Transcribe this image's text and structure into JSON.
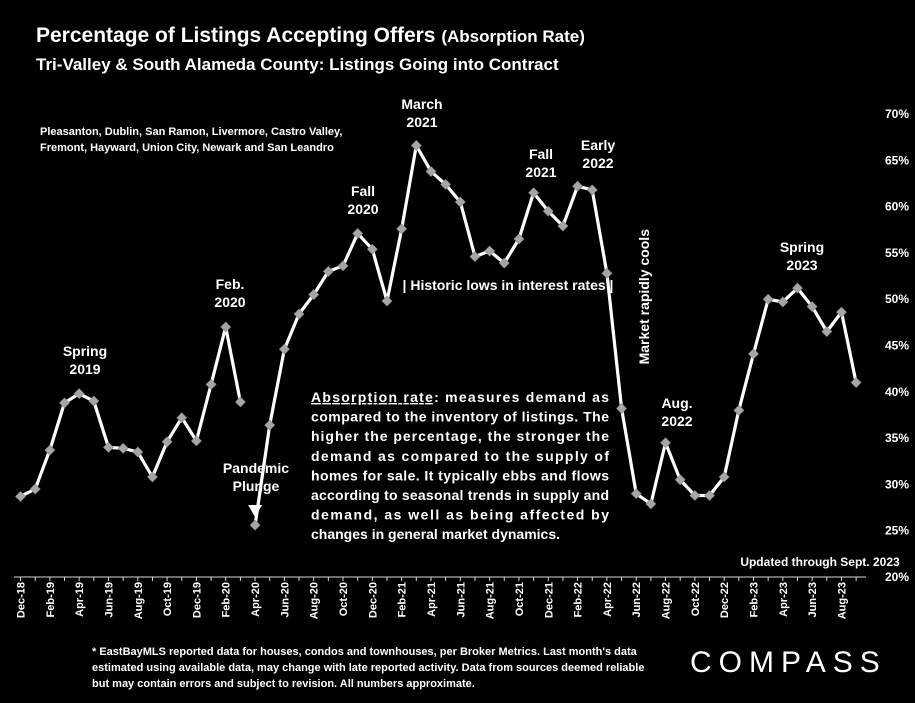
{
  "header": {
    "title": "Percentage of Listings Accepting Offers",
    "title_paren": "(Absorption Rate)",
    "subtitle": "Tri-Valley & South Alameda County: Listings Going into Contract"
  },
  "footer": {
    "footnote": "* EastBayMLS reported data for houses, condos and townhouses, per Broker Metrics. Last month's data estimated using available data, may change with late reported activity. Data from sources deemed reliable but may contain errors and subject to revision. All numbers approximate.",
    "brand": "COMPASS"
  },
  "colors": {
    "background": "#000000",
    "line": "#ffffff",
    "marker": "#a6a6a6",
    "text": "#ffffff"
  },
  "chart_data": {
    "type": "line",
    "title": "Percentage of Listings Accepting Offers (Absorption Rate)",
    "ylim": [
      20,
      70
    ],
    "y_ticks": [
      "20%",
      "25%",
      "30%",
      "35%",
      "40%",
      "45%",
      "50%",
      "55%",
      "60%",
      "65%",
      "70%"
    ],
    "y_axis_side": "right",
    "grid": false,
    "months": [
      "Dec-18",
      "Jan-19",
      "Feb-19",
      "Mar-19",
      "Apr-19",
      "May-19",
      "Jun-19",
      "Jul-19",
      "Aug-19",
      "Sep-19",
      "Oct-19",
      "Nov-19",
      "Dec-19",
      "Jan-20",
      "Feb-20",
      "Mar-20",
      "Apr-20",
      "May-20",
      "Jun-20",
      "Jul-20",
      "Aug-20",
      "Sep-20",
      "Oct-20",
      "Nov-20",
      "Dec-20",
      "Jan-21",
      "Feb-21",
      "Mar-21",
      "Apr-21",
      "May-21",
      "Jun-21",
      "Jul-21",
      "Aug-21",
      "Sep-21",
      "Oct-21",
      "Nov-21",
      "Dec-21",
      "Jan-22",
      "Feb-22",
      "Mar-22",
      "Apr-22",
      "May-22",
      "Jun-22",
      "Jul-22",
      "Aug-22",
      "Sep-22",
      "Oct-22",
      "Nov-22",
      "Dec-22",
      "Jan-23",
      "Feb-23",
      "Mar-23",
      "Apr-23",
      "May-23",
      "Jun-23",
      "Jul-23",
      "Aug-23",
      "Sep-23"
    ],
    "x_tick_labels": [
      "Dec-18",
      "Feb-19",
      "Apr-19",
      "Jun-19",
      "Aug-19",
      "Oct-19",
      "Dec-19",
      "Feb-20",
      "Apr-20",
      "Jun-20",
      "Aug-20",
      "Oct-20",
      "Dec-20",
      "Feb-21",
      "Apr-21",
      "Jun-21",
      "Aug-21",
      "Oct-21",
      "Dec-21",
      "Feb-22",
      "Apr-22",
      "Jun-22",
      "Aug-22",
      "Oct-22",
      "Dec-22",
      "Feb-23",
      "Apr-23",
      "Jun-23",
      "Aug-23"
    ],
    "values": [
      28.7,
      29.5,
      33.7,
      38.8,
      39.8,
      39.0,
      34.0,
      33.9,
      33.5,
      30.8,
      34.6,
      37.2,
      34.7,
      40.8,
      47.0,
      38.9,
      25.6,
      36.4,
      44.6,
      48.4,
      50.5,
      53.0,
      53.6,
      57.1,
      55.4,
      49.8,
      57.6,
      66.6,
      63.8,
      62.4,
      60.5,
      54.6,
      55.2,
      53.9,
      56.5,
      61.5,
      59.5,
      57.9,
      62.2,
      61.8,
      52.8,
      38.2,
      29.0,
      27.9,
      34.5,
      30.5,
      28.8,
      28.8,
      30.8,
      38.0,
      44.1,
      50.0,
      49.7,
      51.2,
      49.2,
      46.5,
      48.6,
      41.0
    ],
    "line_breaks_before": [
      16
    ],
    "annotations": {
      "cities": "Pleasanton, Dublin, San Ramon, Livermore, Castro Valley, Fremont, Hayward, Union City, Newark and San Leandro",
      "spring_2019": "Spring 2019",
      "feb_2020": "Feb. 2020",
      "pandemic_plunge": "Pandemic Plunge",
      "fall_2020": "Fall 2020",
      "march_2021": "March 2021",
      "fall_2021": "Fall 2021",
      "early_2022": "Early 2022",
      "historic_lows": "| Historic lows in interest rates |",
      "market_cools": "Market rapidly cools",
      "aug_2022": "Aug. 2022",
      "spring_2023": "Spring 2023",
      "updated": "Updated through Sept. 2023",
      "definition_term": "Absorption rate",
      "definition_text": "measures demand as compared to the inventory of listings. The higher the percentage, the stronger the demand as compared to the supply of homes for sale. It typically ebbs and flows according to seasonal trends in supply and demand, as well as being affected by changes in general market dynamics."
    }
  }
}
